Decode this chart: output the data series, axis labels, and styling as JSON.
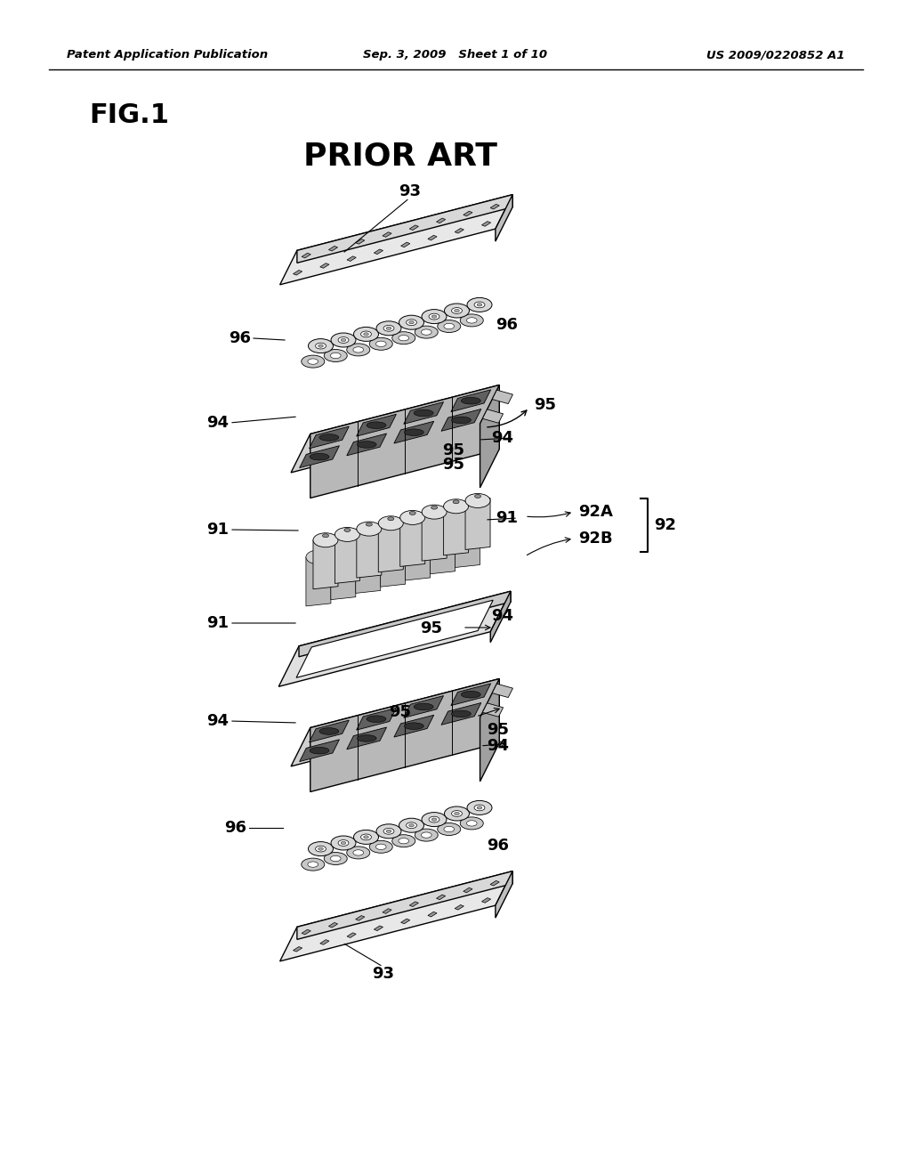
{
  "bg_color": "#ffffff",
  "header_left": "Patent Application Publication",
  "header_mid": "Sep. 3, 2009   Sheet 1 of 10",
  "header_right": "US 2009/0220852 A1",
  "fig_label": "FIG.1",
  "subtitle": "PRIOR ART",
  "line_color": "#000000",
  "text_color": "#000000",
  "fig_width": 10.24,
  "fig_height": 13.2,
  "dpi": 100
}
